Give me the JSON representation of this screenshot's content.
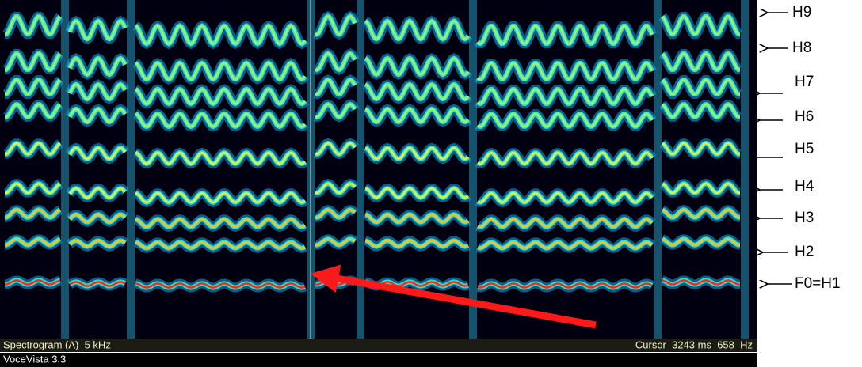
{
  "spectrogram": {
    "status_left": "Spectrogram (A)  5 kHz",
    "status_right": "Cursor  3243 ms  658  Hz",
    "app_title": "VoceVista 3.3"
  },
  "annotations": [
    "H9",
    "H8",
    "H7",
    "H6",
    "H5",
    "H4",
    "H3",
    "H2",
    "F0=H1"
  ]
}
